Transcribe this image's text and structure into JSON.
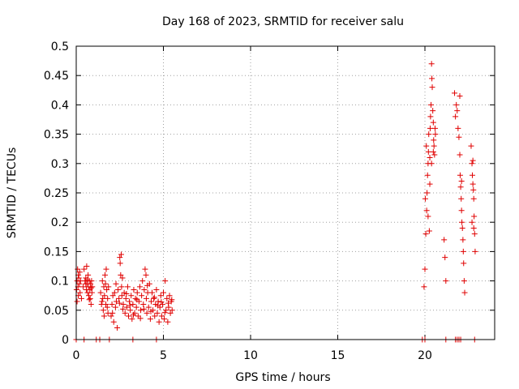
{
  "chart_data": {
    "type": "scatter",
    "title": "Day 168 of 2023, SRMTID for receiver salu",
    "xlabel": "GPS time / hours",
    "ylabel": "SRMTID / TECUs",
    "xlim": [
      0,
      24
    ],
    "ylim": [
      0,
      0.5
    ],
    "x_ticks": [
      0,
      5,
      10,
      15,
      20
    ],
    "x_tick_labels": [
      "0",
      "5",
      "10",
      "15",
      "20"
    ],
    "y_ticks": [
      0,
      0.05,
      0.1,
      0.15,
      0.2,
      0.25,
      0.3,
      0.35,
      0.4,
      0.45,
      0.5
    ],
    "y_tick_labels": [
      "0",
      "0.05",
      "0.1",
      "0.15",
      "0.2",
      "0.25",
      "0.3",
      "0.35",
      "0.4",
      "0.45",
      "0.5"
    ],
    "grid": true,
    "marker": "+",
    "color": "#e00000",
    "series": [
      {
        "name": "SRMTID",
        "points": [
          [
            0.02,
            0.085
          ],
          [
            0.05,
            0.1
          ],
          [
            0.08,
            0.12
          ],
          [
            0.1,
            0.09
          ],
          [
            0.12,
            0.075
          ],
          [
            0.15,
            0.105
          ],
          [
            0.18,
            0.095
          ],
          [
            0.2,
            0.115
          ],
          [
            0.22,
            0.08
          ],
          [
            0.25,
            0.1
          ],
          [
            0.3,
            0.07
          ],
          [
            0.05,
            0.065
          ],
          [
            0.12,
            0.11
          ],
          [
            0.4,
            0.09
          ],
          [
            0.45,
            0.12
          ],
          [
            0.5,
            0.1
          ],
          [
            0.55,
            0.105
          ],
          [
            0.58,
            0.085
          ],
          [
            0.6,
            0.125
          ],
          [
            0.62,
            0.095
          ],
          [
            0.65,
            0.08
          ],
          [
            0.68,
            0.11
          ],
          [
            0.7,
            0.09
          ],
          [
            0.72,
            0.075
          ],
          [
            0.75,
            0.1
          ],
          [
            0.78,
            0.085
          ],
          [
            0.8,
            0.07
          ],
          [
            0.82,
            0.095
          ],
          [
            0.85,
            0.06
          ],
          [
            0.88,
            0.1
          ],
          [
            0.9,
            0.08
          ],
          [
            0.92,
            0.09
          ],
          [
            0.55,
            0.095
          ],
          [
            0.65,
            0.102
          ],
          [
            0.75,
            0.068
          ],
          [
            0.85,
            0.088
          ],
          [
            1.4,
            0.08
          ],
          [
            1.45,
            0.06
          ],
          [
            1.5,
            0.1
          ],
          [
            1.52,
            0.07
          ],
          [
            1.55,
            0.05
          ],
          [
            1.58,
            0.09
          ],
          [
            1.6,
            0.04
          ],
          [
            1.62,
            0.075
          ],
          [
            1.65,
            0.11
          ],
          [
            1.7,
            0.06
          ],
          [
            1.72,
            0.12
          ],
          [
            1.75,
            0.085
          ],
          [
            1.78,
            0.055
          ],
          [
            1.8,
            0.07
          ],
          [
            1.82,
            0.045
          ],
          [
            1.85,
            0.09
          ],
          [
            1.48,
            0.065
          ],
          [
            1.68,
            0.095
          ],
          [
            2.0,
            0.04
          ],
          [
            2.05,
            0.06
          ],
          [
            2.1,
            0.075
          ],
          [
            2.15,
            0.03
          ],
          [
            2.2,
            0.08
          ],
          [
            2.25,
            0.055
          ],
          [
            2.3,
            0.065
          ],
          [
            2.35,
            0.02
          ],
          [
            2.4,
            0.085
          ],
          [
            2.45,
            0.07
          ],
          [
            2.5,
            0.14
          ],
          [
            2.52,
            0.13
          ],
          [
            2.55,
            0.11
          ],
          [
            2.58,
            0.145
          ],
          [
            2.6,
            0.09
          ],
          [
            2.62,
            0.075
          ],
          [
            2.65,
            0.105
          ],
          [
            2.7,
            0.06
          ],
          [
            2.75,
            0.08
          ],
          [
            2.8,
            0.045
          ],
          [
            2.85,
            0.07
          ],
          [
            2.9,
            0.055
          ],
          [
            2.95,
            0.09
          ],
          [
            3.0,
            0.04
          ],
          [
            3.05,
            0.065
          ],
          [
            3.1,
            0.05
          ],
          [
            3.15,
            0.075
          ],
          [
            3.2,
            0.035
          ],
          [
            3.25,
            0.06
          ],
          [
            3.3,
            0.085
          ],
          [
            3.35,
            0.045
          ],
          [
            3.4,
            0.07
          ],
          [
            3.45,
            0.055
          ],
          [
            3.5,
            0.08
          ],
          [
            3.55,
            0.04
          ],
          [
            3.6,
            0.065
          ],
          [
            3.65,
            0.09
          ],
          [
            3.7,
            0.05
          ],
          [
            3.75,
            0.075
          ],
          [
            3.8,
            0.1
          ],
          [
            3.85,
            0.06
          ],
          [
            3.9,
            0.085
          ],
          [
            3.95,
            0.12
          ],
          [
            4.0,
            0.11
          ],
          [
            4.02,
            0.07
          ],
          [
            4.05,
            0.045
          ],
          [
            4.1,
            0.08
          ],
          [
            4.15,
            0.055
          ],
          [
            4.2,
            0.095
          ],
          [
            4.25,
            0.035
          ],
          [
            4.3,
            0.065
          ],
          [
            4.35,
            0.08
          ],
          [
            4.4,
            0.05
          ],
          [
            4.45,
            0.07
          ],
          [
            4.5,
            0.04
          ],
          [
            4.55,
            0.06
          ],
          [
            4.6,
            0.085
          ],
          [
            4.65,
            0.045
          ],
          [
            4.7,
            0.065
          ],
          [
            4.75,
            0.03
          ],
          [
            4.8,
            0.055
          ],
          [
            4.85,
            0.075
          ],
          [
            4.9,
            0.04
          ],
          [
            4.95,
            0.06
          ],
          [
            5.0,
            0.08
          ],
          [
            5.05,
            0.035
          ],
          [
            5.1,
            0.1
          ],
          [
            5.15,
            0.05
          ],
          [
            5.2,
            0.07
          ],
          [
            5.25,
            0.03
          ],
          [
            5.3,
            0.055
          ],
          [
            5.35,
            0.075
          ],
          [
            5.4,
            0.045
          ],
          [
            5.45,
            0.065
          ],
          [
            5.5,
            0.05
          ],
          [
            2.08,
            0.045
          ],
          [
            2.28,
            0.095
          ],
          [
            2.48,
            0.062
          ],
          [
            2.68,
            0.052
          ],
          [
            2.88,
            0.078
          ],
          [
            3.08,
            0.058
          ],
          [
            3.28,
            0.042
          ],
          [
            3.48,
            0.068
          ],
          [
            3.68,
            0.036
          ],
          [
            3.88,
            0.052
          ],
          [
            4.08,
            0.092
          ],
          [
            4.28,
            0.048
          ],
          [
            4.48,
            0.072
          ],
          [
            4.68,
            0.058
          ],
          [
            4.88,
            0.064
          ],
          [
            5.08,
            0.046
          ],
          [
            5.28,
            0.062
          ],
          [
            5.48,
            0.068
          ],
          [
            0.0,
            0.0
          ],
          [
            0.45,
            0.0
          ],
          [
            1.15,
            0.0
          ],
          [
            1.35,
            0.0
          ],
          [
            1.9,
            0.0
          ],
          [
            3.25,
            0.0
          ],
          [
            4.6,
            0.0
          ],
          [
            19.85,
            0.0
          ],
          [
            20.0,
            0.0
          ],
          [
            21.2,
            0.0
          ],
          [
            21.75,
            0.0
          ],
          [
            21.85,
            0.0
          ],
          [
            21.95,
            0.0
          ],
          [
            22.05,
            0.0
          ],
          [
            22.85,
            0.0
          ],
          [
            19.95,
            0.09
          ],
          [
            20.0,
            0.12
          ],
          [
            20.05,
            0.18
          ],
          [
            20.1,
            0.22
          ],
          [
            20.12,
            0.25
          ],
          [
            20.15,
            0.28
          ],
          [
            20.18,
            0.3
          ],
          [
            20.2,
            0.32
          ],
          [
            20.22,
            0.35
          ],
          [
            20.25,
            0.185
          ],
          [
            20.28,
            0.31
          ],
          [
            20.3,
            0.36
          ],
          [
            20.32,
            0.38
          ],
          [
            20.35,
            0.4
          ],
          [
            20.38,
            0.47
          ],
          [
            20.4,
            0.445
          ],
          [
            20.42,
            0.43
          ],
          [
            20.45,
            0.39
          ],
          [
            20.48,
            0.37
          ],
          [
            20.5,
            0.34
          ],
          [
            20.52,
            0.33
          ],
          [
            20.55,
            0.315
          ],
          [
            20.58,
            0.36
          ],
          [
            20.6,
            0.35
          ],
          [
            20.02,
            0.24
          ],
          [
            20.08,
            0.33
          ],
          [
            20.18,
            0.21
          ],
          [
            20.28,
            0.265
          ],
          [
            20.38,
            0.3
          ],
          [
            20.48,
            0.32
          ],
          [
            21.1,
            0.17
          ],
          [
            21.15,
            0.14
          ],
          [
            21.2,
            0.1
          ],
          [
            21.7,
            0.42
          ],
          [
            21.75,
            0.38
          ],
          [
            21.8,
            0.4
          ],
          [
            21.85,
            0.39
          ],
          [
            21.9,
            0.36
          ],
          [
            21.95,
            0.345
          ],
          [
            22.0,
            0.315
          ],
          [
            22.02,
            0.28
          ],
          [
            22.05,
            0.26
          ],
          [
            22.08,
            0.24
          ],
          [
            22.1,
            0.22
          ],
          [
            22.12,
            0.2
          ],
          [
            22.15,
            0.19
          ],
          [
            22.18,
            0.17
          ],
          [
            22.2,
            0.15
          ],
          [
            22.22,
            0.13
          ],
          [
            22.25,
            0.1
          ],
          [
            22.28,
            0.08
          ],
          [
            22.0,
            0.415
          ],
          [
            22.1,
            0.27
          ],
          [
            22.65,
            0.33
          ],
          [
            22.7,
            0.3
          ],
          [
            22.72,
            0.28
          ],
          [
            22.75,
            0.265
          ],
          [
            22.78,
            0.255
          ],
          [
            22.8,
            0.24
          ],
          [
            22.82,
            0.21
          ],
          [
            22.85,
            0.18
          ],
          [
            22.88,
            0.15
          ],
          [
            22.75,
            0.305
          ],
          [
            22.8,
            0.19
          ],
          [
            22.7,
            0.2
          ]
        ]
      }
    ]
  }
}
